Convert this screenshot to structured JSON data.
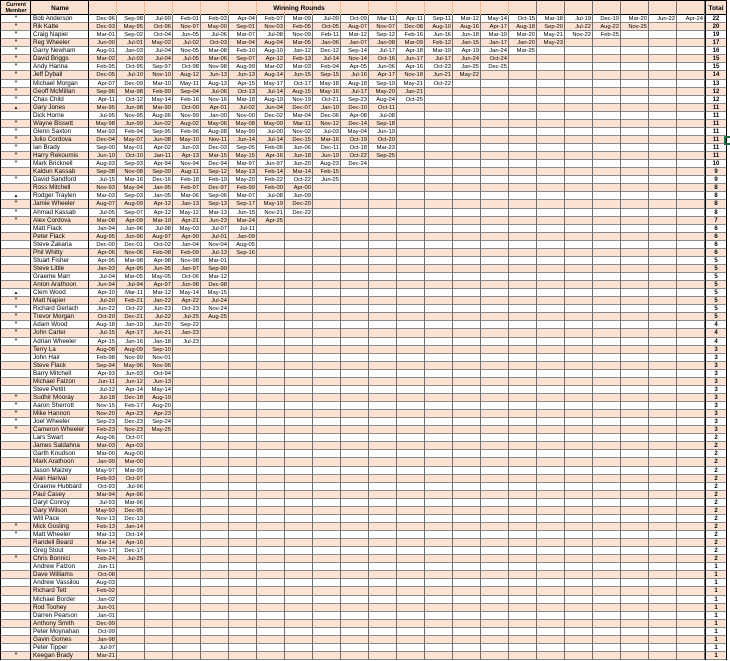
{
  "header": {
    "member_label": "Current Member",
    "name_label": "Name",
    "rounds_label": "Winning Rounds",
    "total_label": "Total",
    "date_columns_count": 22
  },
  "markers": {
    "star": "*",
    "triangle": "▲"
  },
  "colors": {
    "row_stripe": "#fbe2d3",
    "header_fill": "#fae0d0",
    "grid_dark": "#6e6e6e",
    "selection_green": "#1e7145"
  },
  "rows": [
    {
      "marker": "*",
      "name": "Bob Anderson",
      "dates": [
        "Dec-96",
        "Sep-98",
        "Jul-99",
        "Feb-01",
        "Feb-03",
        "Apr-04",
        "Feb-07",
        "Mar-09",
        "Jul-09",
        "Oct-09",
        "Mar-11",
        "Apr-11",
        "Sep-11",
        "Mar-12",
        "May-14",
        "Oct-15",
        "Mar-18",
        "Jul-19",
        "Dec-19",
        "Mar-20",
        "Jun-22",
        "Apr-24"
      ],
      "total": 22
    },
    {
      "marker": "*",
      "name": "Rik Katte",
      "dates": [
        "Dec-93",
        "May-95",
        "Oct-96",
        "Nov-97",
        "May-00",
        "Sep-01",
        "Nov-03",
        "Feb-05",
        "Oct-05",
        "Aug-07",
        "Nov-07",
        "Dec-08",
        "Aug-10",
        "Aug-16",
        "Apr-17",
        "Aug-18",
        "Sep-20",
        "Jul-22",
        "Aug-22",
        "Nov-25"
      ],
      "total": 20
    },
    {
      "marker": "*",
      "name": "Craig Napier",
      "dates": [
        "Mar-01",
        "Sep-02",
        "Oct-04",
        "Jun-05",
        "Jul-06",
        "Mar-07",
        "Jul-08",
        "Nov-09",
        "Feb-11",
        "Mar-12",
        "Sep-12",
        "Feb-16",
        "Jun-16",
        "Jun-18",
        "Mar-19",
        "Mar-20",
        "May-21",
        "Nov-22",
        "Feb-25"
      ],
      "total": 19
    },
    {
      "marker": "*",
      "name": "Reg Wheeler",
      "dates": [
        "Jun-00",
        "Jul-01",
        "May-02",
        "Jul-02",
        "Oct-03",
        "Mar-04",
        "Aug-04",
        "Mar-05",
        "Jan-06",
        "Jan-07",
        "Jan-08",
        "Mar-09",
        "Feb-12",
        "Jan-15",
        "Jan-17",
        "Jan-20",
        "May-23"
      ],
      "total": 17
    },
    {
      "marker": "*",
      "name": "Garry Newham",
      "dates": [
        "Aug-01",
        "Jan-03",
        "Jul-04",
        "Nov-05",
        "Mar-08",
        "Feb-10",
        "Aug-10",
        "Jan-12",
        "Dec-12",
        "Sep-14",
        "Jul-17",
        "Apr-18",
        "Mar-19",
        "Apr-19",
        "Jan-24",
        "Mar-25"
      ],
      "total": 16
    },
    {
      "marker": "*",
      "name": "David Briggs",
      "dates": [
        "Mar-02",
        "Jul-03",
        "Jul-04",
        "Jul-05",
        "Mar-06",
        "Sep-07",
        "Apr-12",
        "Feb-13",
        "Jul-14",
        "Nov-14",
        "Oct-16",
        "Jun-17",
        "Jul-17",
        "Jun-24",
        "Oct-24"
      ],
      "total": 15
    },
    {
      "marker": "*",
      "name": "Andy Hanna",
      "dates": [
        "Feb-95",
        "Oct-95",
        "Sep-97",
        "Oct-98",
        "Nov-98",
        "Aug-99",
        "Mar-02",
        "Mar-03",
        "Feb-04",
        "Apr-05",
        "Jun-06",
        "Apr-16",
        "Oct-23",
        "Jan-25",
        "Dec-25"
      ],
      "total": 15
    },
    {
      "marker": "*",
      "name": "Jeff Dyball",
      "dates": [
        "Dec-05",
        "Jul-10",
        "Nov-10",
        "Aug-12",
        "Jun-13",
        "Jun-13",
        "Aug-14",
        "Jun-15",
        "Sep-15",
        "Jul-16",
        "Apr-17",
        "Nov-18",
        "Jun-21",
        "May-22"
      ],
      "total": 14
    },
    {
      "marker": "*",
      "name": "Michael Morgan",
      "dates": [
        "Apr-07",
        "Dec-09",
        "Mar-10",
        "May-11",
        "Aug-13",
        "Apr-15",
        "May-17",
        "Oct-17",
        "May-18",
        "Aug-18",
        "Sep-19",
        "May-21",
        "Oct-22"
      ],
      "total": 13
    },
    {
      "marker": "*",
      "name": "Geoff McMillan",
      "dates": [
        "Sep-96",
        "Mar-98",
        "Feb-99",
        "Sep-04",
        "Jul-06",
        "Oct-13",
        "Jul-14",
        "Aug-15",
        "May-16",
        "Jul-17",
        "May-20",
        "Jan-21"
      ],
      "total": 12
    },
    {
      "marker": "*",
      "name": "Chas Child",
      "dates": [
        "Apr-11",
        "Oct-12",
        "May-14",
        "Feb-16",
        "Nov-16",
        "Mar-18",
        "Aug-19",
        "Nov-19",
        "Oct-21",
        "Sep-23",
        "Aug-24",
        "Oct-25"
      ],
      "total": 12
    },
    {
      "marker": "▲",
      "name": "Gary Jones",
      "dates": [
        "Mar-95",
        "Jun-98",
        "Mar-99",
        "Oct-00",
        "Apr-01",
        "Jul-02",
        "Jun-04",
        "Dec-07",
        "Jan-10",
        "Dec-10",
        "Oct-11"
      ],
      "total": 11
    },
    {
      "marker": "",
      "name": "Dick Horne",
      "dates": [
        "Jul-95",
        "Nov-95",
        "Aug-96",
        "Nov-99",
        "Jan-00",
        "Nov-00",
        "Dec-02",
        "Mar-04",
        "Dec-06",
        "Apr-08",
        "Jul-08"
      ],
      "total": 11
    },
    {
      "marker": "*",
      "name": "Wayne Bissett",
      "dates": [
        "May-98",
        "Jun-99",
        "Jun-02",
        "Aug-02",
        "May-06",
        "May-08",
        "May-09",
        "Mar-11",
        "Nov-12",
        "Dec-14",
        "Sep-18"
      ],
      "total": 11
    },
    {
      "marker": "*",
      "name": "Glenn Saxton",
      "dates": [
        "Mar-93",
        "Feb-94",
        "Sep-95",
        "Feb-96",
        "Aug-98",
        "May-99",
        "Jul-00",
        "Nov-02",
        "Jul-03",
        "May-04",
        "Jun-19"
      ],
      "total": 11
    },
    {
      "marker": "*",
      "name": "Julio Cordova",
      "dates": [
        "Dec-04",
        "May-07",
        "Jun-08",
        "May-10",
        "Nov-11",
        "Jun-14",
        "Jul-14",
        "Dec-15",
        "Mar-16",
        "Oct-19",
        "Oct-20"
      ],
      "total": 11
    },
    {
      "marker": "*",
      "name": "Ian Brady",
      "dates": [
        "Sep-00",
        "May-01",
        "Apr-02",
        "Jun-03",
        "Dec-03",
        "Sep-05",
        "Feb-06",
        "Jun-06",
        "Dec-11",
        "Oct-18",
        "Mar-23"
      ],
      "total": 11
    },
    {
      "marker": "*",
      "name": "Harry Rekoumis",
      "dates": [
        "Jun-10",
        "Oct-10",
        "Jan-11",
        "Apr-13",
        "Mar-15",
        "May-15",
        "Apr-16",
        "Jun-18",
        "Jun-19",
        "Oct-22",
        "Sep-25"
      ],
      "total": 11
    },
    {
      "marker": "*",
      "name": "Mark Bricknell",
      "dates": [
        "Aug-93",
        "Sep-93",
        "Apr-94",
        "Nov-94",
        "Dec-94",
        "Mar-97",
        "Jun-97",
        "Jun-20",
        "Aug-23",
        "Dec-24"
      ],
      "total": 10
    },
    {
      "marker": "",
      "name": "Kaldun Kassab",
      "dates": [
        "Sep-08",
        "Nov-08",
        "Sep-09",
        "Aug-11",
        "Sep-12",
        "May-13",
        "Feb-14",
        "Mar-14",
        "Feb-15"
      ],
      "total": 9
    },
    {
      "marker": "*",
      "name": "David Sandford",
      "dates": [
        "Jul-15",
        "Mar-16",
        "Dec-16",
        "Feb-18",
        "Feb-19",
        "May-20",
        "Feb-22",
        "Oct-22",
        "Jun-25"
      ],
      "total": 9
    },
    {
      "marker": "",
      "name": "Ross Mitchell",
      "dates": [
        "Nov-93",
        "May-94",
        "Jan-95",
        "Feb-97",
        "Dec-97",
        "Feb-99",
        "Feb-00",
        "Apr-00"
      ],
      "total": 8
    },
    {
      "marker": "▲",
      "name": "Rodger Traylen",
      "dates": [
        "Mar-03",
        "Sep-03",
        "Jan-05",
        "Mar-06",
        "Sep-06",
        "Mar-07",
        "Jul-08",
        "Jun-09"
      ],
      "total": 8
    },
    {
      "marker": "*",
      "name": "Jamie Wheeler",
      "dates": [
        "Aug-07",
        "Aug-09",
        "Apr-12",
        "Jan-13",
        "Sep-13",
        "Sep-17",
        "May-19",
        "Dec-20"
      ],
      "total": 8
    },
    {
      "marker": "*",
      "name": "Ahmad Kassab",
      "dates": [
        "Jul-05",
        "Sep-07",
        "Apr-12",
        "May-12",
        "Mar-13",
        "Jun-15",
        "Nov-21",
        "Dec-22"
      ],
      "total": 8
    },
    {
      "marker": "*",
      "name": "Alex Cordova",
      "dates": [
        "Mar-08",
        "Apr-09",
        "Mar-10",
        "Apr-21",
        "Jun-23",
        "Mar-24",
        "Apr-25"
      ],
      "total": 7
    },
    {
      "marker": "",
      "name": "Matt Flack",
      "dates": [
        "Jan-94",
        "Jan-96",
        "Jul-98",
        "May-03",
        "Jul-07",
        "Jul-11"
      ],
      "total": 6
    },
    {
      "marker": "",
      "name": "Peter Flack",
      "dates": [
        "Aug-95",
        "Jun-96",
        "Aug-97",
        "Apr-99",
        "Jul-01",
        "Jan-09"
      ],
      "total": 6
    },
    {
      "marker": "",
      "name": "Steve Zakaria",
      "dates": [
        "Dec-00",
        "Dec-01",
        "Oct-02",
        "Jan-04",
        "Nov-04",
        "Aug-05"
      ],
      "total": 6
    },
    {
      "marker": "",
      "name": "Phil Whitty",
      "dates": [
        "Apr-06",
        "Nov-06",
        "Feb-08",
        "Feb-09",
        "Jul-13",
        "Sep-16"
      ],
      "total": 6
    },
    {
      "marker": "",
      "name": "Stuart Fisher",
      "dates": [
        "Apr-95",
        "Mar-98",
        "Apr-98",
        "Nov-98",
        "Mar-01"
      ],
      "total": 5
    },
    {
      "marker": "",
      "name": "Steve Little",
      "dates": [
        "Jan-93",
        "Apr-95",
        "Jun-95",
        "Jan-97",
        "Sep-99"
      ],
      "total": 5
    },
    {
      "marker": "",
      "name": "Graeme Marr",
      "dates": [
        "Jul-04",
        "Mar-05",
        "May-05",
        "Oct-06",
        "Mar-12"
      ],
      "total": 5
    },
    {
      "marker": "",
      "name": "Anton Arathoon",
      "dates": [
        "Jun-94",
        "Jul-94",
        "Apr-97",
        "Jun-98",
        "Dec-98"
      ],
      "total": 5
    },
    {
      "marker": "▲",
      "name": "Clem Wood",
      "dates": [
        "Apr-10",
        "Mar-11",
        "Mar-12",
        "May-14",
        "May-15"
      ],
      "total": 5
    },
    {
      "marker": "*",
      "name": "Matt Napier",
      "dates": [
        "Jul-20",
        "Feb-21",
        "Jan-22",
        "Apr-22",
        "Jul-24"
      ],
      "total": 5
    },
    {
      "marker": "*",
      "name": "Richard Gerlach",
      "dates": [
        "Jun-22",
        "Oct-22",
        "Jun-23",
        "Oct-23",
        "Nov-24"
      ],
      "total": 5
    },
    {
      "marker": "*",
      "name": "Trevor Morgan",
      "dates": [
        "Oct-20",
        "Dec-21",
        "Jul-22",
        "Jul-25",
        "Aug-25"
      ],
      "total": 5
    },
    {
      "marker": "*",
      "name": "Adam Wood",
      "dates": [
        "Aug-18",
        "Jan-19",
        "Jun-20",
        "Sep-22"
      ],
      "total": 4
    },
    {
      "marker": "*",
      "name": "John Carter",
      "dates": [
        "Jul-15",
        "Apr-17",
        "Jun-21",
        "Jan-23"
      ],
      "total": 4
    },
    {
      "marker": "*",
      "name": "Adrian Wheeler",
      "dates": [
        "Apr-15",
        "Jan-16",
        "Jan-18",
        "Jul-23"
      ],
      "total": 4
    },
    {
      "marker": "",
      "name": "Terry La",
      "dates": [
        "Aug-08",
        "Aug-09",
        "Sep-10"
      ],
      "total": 3
    },
    {
      "marker": "",
      "name": "John Hair",
      "dates": [
        "Feb-98",
        "Nov-99",
        "Nov-01"
      ],
      "total": 3
    },
    {
      "marker": "",
      "name": "Steve Flack",
      "dates": [
        "Sep-94",
        "May-96",
        "Nov-96"
      ],
      "total": 3
    },
    {
      "marker": "",
      "name": "Barry Mitchell",
      "dates": [
        "Apr-93",
        "Jun-93",
        "Oct-94"
      ],
      "total": 3
    },
    {
      "marker": "",
      "name": "Michael Falzon",
      "dates": [
        "Jun-11",
        "Jun-12",
        "Jun-13"
      ],
      "total": 3
    },
    {
      "marker": "",
      "name": "Steve Pettit",
      "dates": [
        "Jul-12",
        "Apr-14",
        "May-14"
      ],
      "total": 3
    },
    {
      "marker": "*",
      "name": "Sudhir Mooray",
      "dates": [
        "Jul-18",
        "Dec-18",
        "Aug-19"
      ],
      "total": 3
    },
    {
      "marker": "*",
      "name": "Aaron Sherrott",
      "dates": [
        "Nov-15",
        "Feb-17",
        "Aug-20"
      ],
      "total": 3
    },
    {
      "marker": "*",
      "name": "Mike Hannon",
      "dates": [
        "Nov-20",
        "Apr-23",
        "Apr-23"
      ],
      "total": 3
    },
    {
      "marker": "*",
      "name": "Joel Wheeler",
      "dates": [
        "Sep-23",
        "Dec-23",
        "Sep-24"
      ],
      "total": 3
    },
    {
      "marker": "*",
      "name": "Cameron Wheeler",
      "dates": [
        "Feb-23",
        "Nov-23",
        "May-25"
      ],
      "total": 3
    },
    {
      "marker": "",
      "name": "Lars Swart",
      "dates": [
        "Aug-06",
        "Oct-07"
      ],
      "total": 2
    },
    {
      "marker": "",
      "name": "James Saldahna",
      "dates": [
        "Mar-03",
        "Apr-03"
      ],
      "total": 2
    },
    {
      "marker": "",
      "name": "Garth Knudson",
      "dates": [
        "Mar-00",
        "Aug-00"
      ],
      "total": 2
    },
    {
      "marker": "",
      "name": "Mark Arathoon",
      "dates": [
        "Jan-99",
        "Mar-00"
      ],
      "total": 2
    },
    {
      "marker": "",
      "name": "Jason Maizey",
      "dates": [
        "May-97",
        "Mar-99"
      ],
      "total": 2
    },
    {
      "marker": "",
      "name": "Alan Harival",
      "dates": [
        "Feb-93",
        "Oct-97"
      ],
      "total": 2
    },
    {
      "marker": "",
      "name": "Graeme Hubbard",
      "dates": [
        "Oct-93",
        "Jul-96"
      ],
      "total": 2
    },
    {
      "marker": "",
      "name": "Paul Casey",
      "dates": [
        "Mar-94",
        "Apr-96"
      ],
      "total": 2
    },
    {
      "marker": "",
      "name": "Daryl Conroy",
      "dates": [
        "Jul-93",
        "Mar-96"
      ],
      "total": 2
    },
    {
      "marker": "",
      "name": "Gary Wilson",
      "dates": [
        "May-93",
        "Dec-95"
      ],
      "total": 2
    },
    {
      "marker": "",
      "name": "Will Pace",
      "dates": [
        "Nov-13",
        "Dec-13"
      ],
      "total": 2
    },
    {
      "marker": "*",
      "name": "Mick Gosling",
      "dates": [
        "Feb-13",
        "Jan-14"
      ],
      "total": 2
    },
    {
      "marker": "*",
      "name": "Matt Wheeler",
      "dates": [
        "Mar-13",
        "Oct-14"
      ],
      "total": 2
    },
    {
      "marker": "",
      "name": "Randell Beard",
      "dates": [
        "Mar-14",
        "Apr-16"
      ],
      "total": 2
    },
    {
      "marker": "",
      "name": "Greg Stout",
      "dates": [
        "Nov-17",
        "Dec-17"
      ],
      "total": 2
    },
    {
      "marker": "*",
      "name": "Chris Bonnici",
      "dates": [
        "Feb-24",
        "Jul-25"
      ],
      "total": 2
    },
    {
      "marker": "",
      "name": "Andrew Falzon",
      "dates": [
        "Jun-11"
      ],
      "total": 1
    },
    {
      "marker": "",
      "name": "Dave Williams",
      "dates": [
        "Oct-08"
      ],
      "total": 1
    },
    {
      "marker": "",
      "name": "Andrew Vassilou",
      "dates": [
        "Aug-03"
      ],
      "total": 1
    },
    {
      "marker": "",
      "name": "Richard Tett",
      "dates": [
        "Feb-02"
      ],
      "total": 1
    },
    {
      "marker": "",
      "name": "Michael Border",
      "dates": [
        "Jan-02"
      ],
      "total": 1
    },
    {
      "marker": "",
      "name": "Rod Toohey",
      "dates": [
        "Jun-01"
      ],
      "total": 1
    },
    {
      "marker": "",
      "name": "Darren Pearson",
      "dates": [
        "Jan-01"
      ],
      "total": 1
    },
    {
      "marker": "",
      "name": "Anthony Smith",
      "dates": [
        "Dec-99"
      ],
      "total": 1
    },
    {
      "marker": "",
      "name": "Peter Moynahan",
      "dates": [
        "Oct-99"
      ],
      "total": 1
    },
    {
      "marker": "",
      "name": "Gavin Gomes",
      "dates": [
        "Jan-98"
      ],
      "total": 1
    },
    {
      "marker": "",
      "name": "Peter Tipper",
      "dates": [
        "Jul-97"
      ],
      "total": 1
    },
    {
      "marker": "*",
      "name": "Keegan Brady",
      "dates": [
        "Mar-21"
      ],
      "total": 1
    }
  ]
}
